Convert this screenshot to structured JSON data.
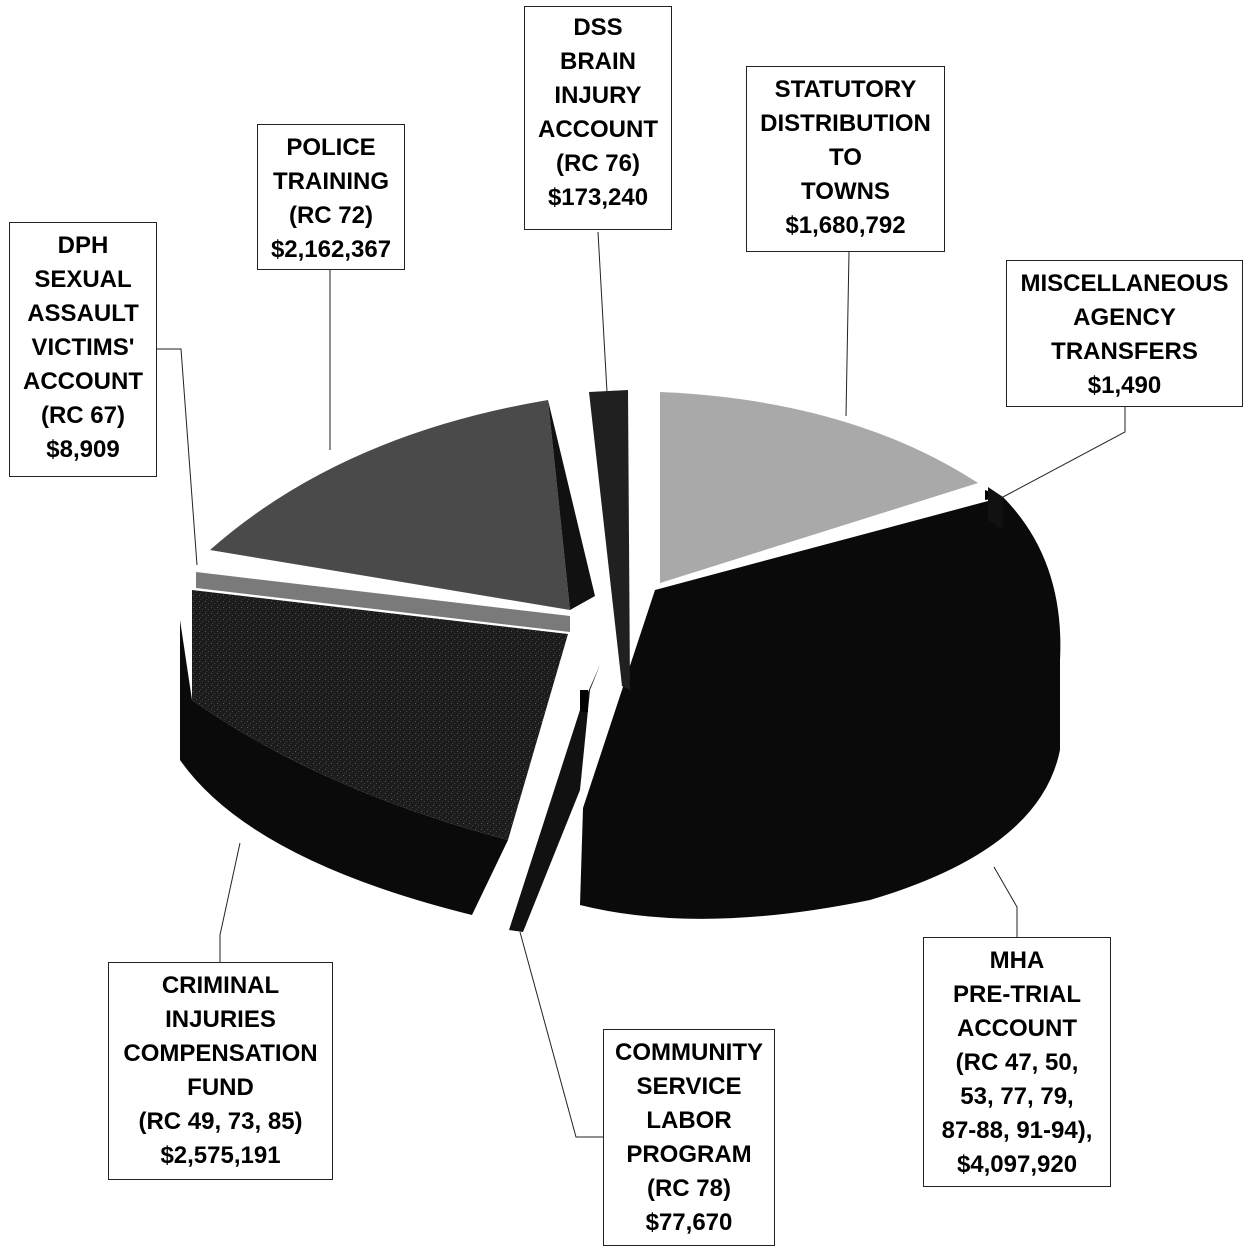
{
  "chart_data": {
    "type": "pie",
    "style": "3d-exploded",
    "colors": {
      "dark": "#0a0a0a",
      "police": "#4a4a4a",
      "towns": "#a9a9a9",
      "brain": "#202020",
      "dph_band": "#7a7a7a",
      "criminal_top": "#1e1e1e"
    },
    "slices": [
      {
        "key": "mha",
        "label_lines": [
          "MHA",
          "PRE-TRIAL",
          "ACCOUNT",
          "(RC 47, 50,",
          "53, 77, 79,",
          "87-88, 91-94),",
          "$4,097,920"
        ],
        "value": 4097920
      },
      {
        "key": "community",
        "label_lines": [
          "COMMUNITY",
          "SERVICE",
          "LABOR",
          "PROGRAM",
          "(RC 78)",
          "$77,670"
        ],
        "value": 77670
      },
      {
        "key": "criminal",
        "label_lines": [
          "CRIMINAL",
          "INJURIES",
          "COMPENSATION",
          "FUND",
          "(RC 49, 73, 85)",
          "$2,575,191"
        ],
        "value": 2575191
      },
      {
        "key": "dph",
        "label_lines": [
          "DPH",
          "SEXUAL",
          "ASSAULT",
          "VICTIMS'",
          "ACCOUNT",
          "(RC 67)",
          "$8,909"
        ],
        "value": 8909
      },
      {
        "key": "police",
        "label_lines": [
          "POLICE",
          "TRAINING",
          "(RC 72)",
          "$2,162,367"
        ],
        "value": 2162367
      },
      {
        "key": "brain",
        "label_lines": [
          "DSS",
          "BRAIN",
          "INJURY",
          "ACCOUNT",
          "(RC 76)",
          "$173,240"
        ],
        "value": 173240
      },
      {
        "key": "towns",
        "label_lines": [
          "STATUTORY",
          "DISTRIBUTION",
          "TO",
          "TOWNS",
          "$1,680,792"
        ],
        "value": 1680792
      },
      {
        "key": "misc",
        "label_lines": [
          "MISCELLANEOUS",
          "AGENCY",
          "TRANSFERS",
          "$1,490"
        ],
        "value": 1490
      }
    ]
  }
}
